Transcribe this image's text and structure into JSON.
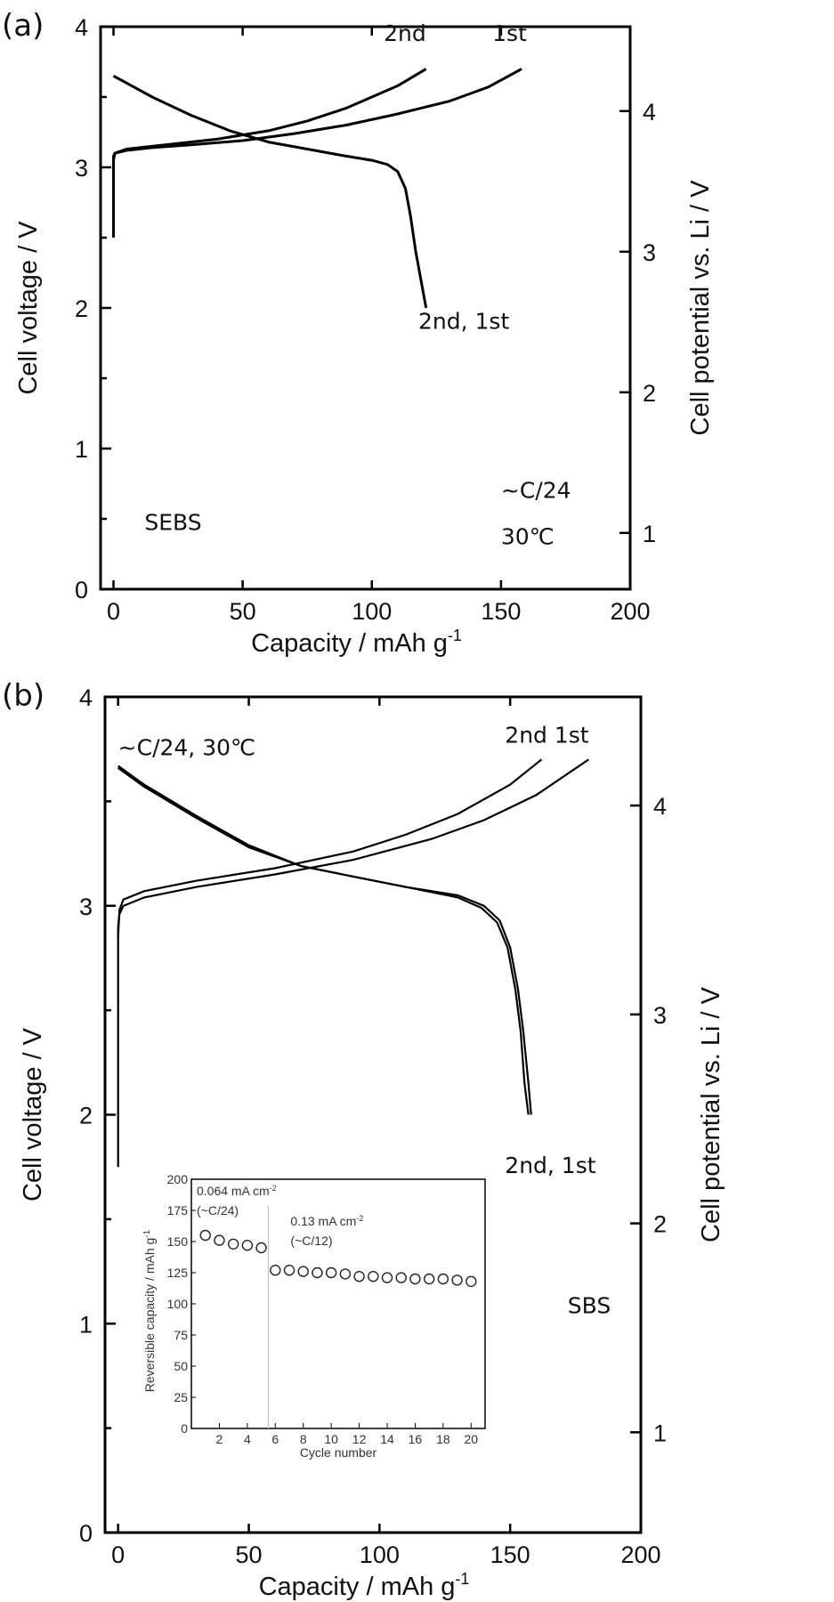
{
  "chart_data": [
    {
      "type": "line",
      "panel_label": "(a)",
      "xlabel": "Capacity / mAh g",
      "xlabel_sup": "-1",
      "ylabel": "Cell voltage / V",
      "y2label": "Cell potential vs. Li / V",
      "xlim": [
        -5,
        200
      ],
      "ylim": [
        0,
        4
      ],
      "y2_offset": 0.6,
      "xticks": [
        "0",
        "50",
        "100",
        "150",
        "200"
      ],
      "yticks": [
        "0",
        "1",
        "2",
        "3",
        "4"
      ],
      "y2ticks": [
        "1",
        "2",
        "3",
        "4"
      ],
      "annotations": [
        "2nd",
        "1st",
        "2nd, 1st",
        "SEBS",
        "~C/24",
        "30℃"
      ],
      "series": [
        {
          "name": "1st charge",
          "x": [
            0,
            0,
            0.5,
            5,
            15,
            30,
            50,
            70,
            90,
            110,
            130,
            145,
            158
          ],
          "y": [
            2.5,
            3.08,
            3.1,
            3.12,
            3.14,
            3.16,
            3.19,
            3.24,
            3.3,
            3.38,
            3.47,
            3.57,
            3.7
          ]
        },
        {
          "name": "2nd charge",
          "x": [
            0,
            0.5,
            5,
            20,
            40,
            60,
            75,
            90,
            100,
            110,
            121
          ],
          "y": [
            3.05,
            3.1,
            3.13,
            3.16,
            3.2,
            3.26,
            3.33,
            3.42,
            3.5,
            3.58,
            3.7
          ]
        },
        {
          "name": "1st/2nd discharge",
          "x": [
            0,
            5,
            15,
            30,
            45,
            60,
            75,
            90,
            100,
            106,
            110,
            113,
            115,
            117,
            119,
            121
          ],
          "y": [
            3.65,
            3.6,
            3.5,
            3.37,
            3.26,
            3.18,
            3.13,
            3.08,
            3.05,
            3.02,
            2.97,
            2.85,
            2.65,
            2.4,
            2.2,
            2.0
          ]
        }
      ]
    },
    {
      "type": "line",
      "panel_label": "(b)",
      "xlabel": "Capacity / mAh g",
      "xlabel_sup": "-1",
      "ylabel": "Cell voltage / V",
      "y2label": "Cell potential vs. Li / V",
      "xlim": [
        -5,
        200
      ],
      "ylim": [
        0,
        4
      ],
      "y2_offset": 0.52,
      "xticks": [
        "0",
        "50",
        "100",
        "150",
        "200"
      ],
      "yticks": [
        "0",
        "1",
        "2",
        "3",
        "4"
      ],
      "y2ticks": [
        "1",
        "2",
        "3",
        "4"
      ],
      "annotations": [
        "~C/24, 30℃",
        "2nd 1st",
        "2nd, 1st",
        "SBS"
      ],
      "series": [
        {
          "name": "1st charge",
          "x": [
            0,
            0,
            0.5,
            2,
            10,
            30,
            60,
            90,
            120,
            140,
            160,
            180
          ],
          "y": [
            1.75,
            2.9,
            2.96,
            3.0,
            3.04,
            3.09,
            3.15,
            3.22,
            3.32,
            3.41,
            3.53,
            3.7
          ]
        },
        {
          "name": "2nd charge",
          "x": [
            0,
            0.5,
            2,
            10,
            30,
            60,
            90,
            110,
            130,
            150,
            162
          ],
          "y": [
            2.85,
            2.98,
            3.03,
            3.07,
            3.12,
            3.18,
            3.26,
            3.34,
            3.44,
            3.58,
            3.7
          ]
        },
        {
          "name": "1st discharge",
          "x": [
            0,
            10,
            30,
            50,
            70,
            90,
            110,
            130,
            140,
            146,
            150,
            153,
            155,
            157,
            158
          ],
          "y": [
            3.67,
            3.58,
            3.43,
            3.29,
            3.19,
            3.14,
            3.09,
            3.05,
            3.0,
            2.93,
            2.8,
            2.6,
            2.4,
            2.15,
            2.0
          ]
        },
        {
          "name": "2nd discharge",
          "x": [
            0,
            10,
            30,
            50,
            70,
            90,
            110,
            130,
            139,
            145,
            149,
            152,
            154,
            155.5,
            157
          ],
          "y": [
            3.66,
            3.57,
            3.42,
            3.28,
            3.19,
            3.14,
            3.09,
            3.04,
            2.99,
            2.92,
            2.8,
            2.6,
            2.4,
            2.15,
            2.0
          ]
        }
      ],
      "inset": {
        "type": "scatter",
        "xlabel": "Cycle number",
        "ylabel": "Reversible capacity / mAh g",
        "ylabel_sup": "-1",
        "xlim": [
          0,
          21
        ],
        "ylim": [
          0,
          200
        ],
        "xticks": [
          "2",
          "4",
          "6",
          "8",
          "10",
          "12",
          "14",
          "16",
          "18",
          "20"
        ],
        "yticks": [
          "0",
          "25",
          "50",
          "75",
          "100",
          "125",
          "150",
          "175",
          "200"
        ],
        "rate_change_cycle": 5.5,
        "annotations": [
          "0.064 mA cm",
          "-2",
          "(~C/24)",
          "0.13 mA cm",
          "-2",
          "(~C/12)"
        ],
        "x": [
          1,
          2,
          3,
          4,
          5,
          6,
          7,
          8,
          9,
          10,
          11,
          12,
          13,
          14,
          15,
          16,
          17,
          18,
          19,
          20
        ],
        "y": [
          155,
          151,
          148,
          147,
          145,
          127,
          127,
          126,
          125,
          125,
          124,
          122,
          122,
          121,
          121,
          120,
          120,
          120,
          119,
          118
        ]
      }
    }
  ]
}
